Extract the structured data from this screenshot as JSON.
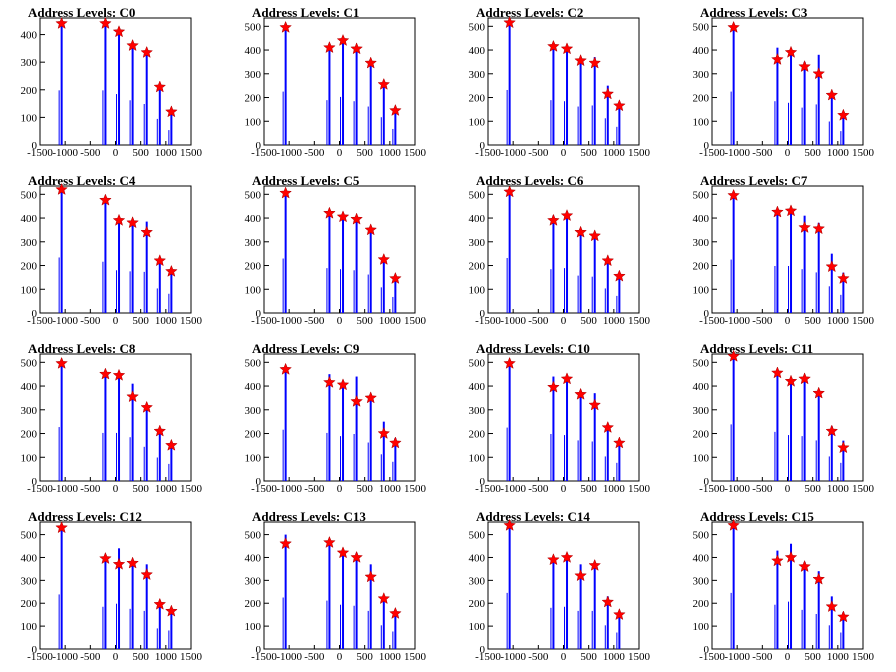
{
  "chart_data": [
    {
      "type": "bar",
      "title": "Address Levels: C0",
      "xlim": [
        -1500,
        1500
      ],
      "ylim": [
        0,
        460
      ],
      "yticks": [
        100,
        200,
        300,
        400
      ],
      "x": [
        -1070,
        -200,
        70,
        340,
        620,
        880,
        1110
      ],
      "values": [
        440,
        440,
        410,
        360,
        330,
        210,
        120
      ],
      "peaks": [
        {
          "x": -1070,
          "y": 440
        },
        {
          "x": -200,
          "y": 440
        },
        {
          "x": 70,
          "y": 410
        },
        {
          "x": 340,
          "y": 360
        },
        {
          "x": 620,
          "y": 335
        },
        {
          "x": 880,
          "y": 210
        },
        {
          "x": 1110,
          "y": 120
        }
      ]
    },
    {
      "type": "bar",
      "title": "Address Levels: C1",
      "xlim": [
        -1500,
        1500
      ],
      "ylim": [
        0,
        535
      ],
      "yticks": [
        100,
        200,
        300,
        400,
        500
      ],
      "x": [
        -1070,
        -200,
        70,
        340,
        620,
        880,
        1110
      ],
      "values": [
        500,
        420,
        450,
        410,
        360,
        260,
        150
      ],
      "peaks": [
        {
          "x": -1070,
          "y": 495
        },
        {
          "x": -200,
          "y": 410
        },
        {
          "x": 70,
          "y": 440
        },
        {
          "x": 340,
          "y": 405
        },
        {
          "x": 620,
          "y": 345
        },
        {
          "x": 880,
          "y": 255
        },
        {
          "x": 1110,
          "y": 145
        }
      ]
    },
    {
      "type": "bar",
      "title": "Address Levels: C2",
      "xlim": [
        -1500,
        1500
      ],
      "ylim": [
        0,
        535
      ],
      "yticks": [
        100,
        200,
        300,
        400,
        500
      ],
      "x": [
        -1070,
        -200,
        70,
        340,
        620,
        880,
        1110
      ],
      "values": [
        515,
        420,
        410,
        360,
        370,
        250,
        170
      ],
      "peaks": [
        {
          "x": -1070,
          "y": 515
        },
        {
          "x": -200,
          "y": 415
        },
        {
          "x": 70,
          "y": 405
        },
        {
          "x": 340,
          "y": 355
        },
        {
          "x": 620,
          "y": 345
        },
        {
          "x": 880,
          "y": 215
        },
        {
          "x": 1110,
          "y": 165
        }
      ]
    },
    {
      "type": "bar",
      "title": "Address Levels: C3",
      "xlim": [
        -1500,
        1500
      ],
      "ylim": [
        0,
        535
      ],
      "yticks": [
        100,
        200,
        300,
        400,
        500
      ],
      "x": [
        -1070,
        -200,
        70,
        340,
        620,
        880,
        1110
      ],
      "values": [
        500,
        410,
        395,
        350,
        380,
        220,
        130
      ],
      "peaks": [
        {
          "x": -1070,
          "y": 495
        },
        {
          "x": -200,
          "y": 360
        },
        {
          "x": 70,
          "y": 390
        },
        {
          "x": 340,
          "y": 330
        },
        {
          "x": 620,
          "y": 300
        },
        {
          "x": 880,
          "y": 210
        },
        {
          "x": 1110,
          "y": 125
        }
      ]
    },
    {
      "type": "bar",
      "title": "Address Levels: C4",
      "xlim": [
        -1500,
        1500
      ],
      "ylim": [
        0,
        535
      ],
      "yticks": [
        100,
        200,
        300,
        400,
        500
      ],
      "x": [
        -1070,
        -200,
        70,
        340,
        620,
        880,
        1110
      ],
      "values": [
        520,
        480,
        400,
        390,
        385,
        230,
        180
      ],
      "peaks": [
        {
          "x": -1070,
          "y": 520
        },
        {
          "x": -200,
          "y": 475
        },
        {
          "x": 70,
          "y": 390
        },
        {
          "x": 340,
          "y": 380
        },
        {
          "x": 620,
          "y": 340
        },
        {
          "x": 880,
          "y": 220
        },
        {
          "x": 1110,
          "y": 175
        }
      ]
    },
    {
      "type": "bar",
      "title": "Address Levels: C5",
      "xlim": [
        -1500,
        1500
      ],
      "ylim": [
        0,
        535
      ],
      "yticks": [
        100,
        200,
        300,
        400,
        500
      ],
      "x": [
        -1070,
        -200,
        70,
        340,
        620,
        880,
        1110
      ],
      "values": [
        510,
        420,
        410,
        400,
        360,
        240,
        150
      ],
      "peaks": [
        {
          "x": -1070,
          "y": 505
        },
        {
          "x": -200,
          "y": 420
        },
        {
          "x": 70,
          "y": 405
        },
        {
          "x": 340,
          "y": 395
        },
        {
          "x": 620,
          "y": 350
        },
        {
          "x": 880,
          "y": 225
        },
        {
          "x": 1110,
          "y": 145
        }
      ]
    },
    {
      "type": "bar",
      "title": "Address Levels: C6",
      "xlim": [
        -1500,
        1500
      ],
      "ylim": [
        0,
        535
      ],
      "yticks": [
        100,
        200,
        300,
        400,
        500
      ],
      "x": [
        -1070,
        -200,
        70,
        340,
        620,
        880,
        1110
      ],
      "values": [
        515,
        410,
        420,
        350,
        340,
        230,
        160
      ],
      "peaks": [
        {
          "x": -1070,
          "y": 510
        },
        {
          "x": -200,
          "y": 390
        },
        {
          "x": 70,
          "y": 410
        },
        {
          "x": 340,
          "y": 340
        },
        {
          "x": 620,
          "y": 325
        },
        {
          "x": 880,
          "y": 220
        },
        {
          "x": 1110,
          "y": 155
        }
      ]
    },
    {
      "type": "bar",
      "title": "Address Levels: C7",
      "xlim": [
        -1500,
        1500
      ],
      "ylim": [
        0,
        535
      ],
      "yticks": [
        100,
        200,
        300,
        400,
        500
      ],
      "x": [
        -1070,
        -200,
        70,
        340,
        620,
        880,
        1110
      ],
      "values": [
        500,
        440,
        440,
        410,
        380,
        250,
        170
      ],
      "peaks": [
        {
          "x": -1070,
          "y": 495
        },
        {
          "x": -200,
          "y": 425
        },
        {
          "x": 70,
          "y": 430
        },
        {
          "x": 340,
          "y": 360
        },
        {
          "x": 620,
          "y": 355
        },
        {
          "x": 880,
          "y": 195
        },
        {
          "x": 1110,
          "y": 145
        }
      ]
    },
    {
      "type": "bar",
      "title": "Address Levels: C8",
      "xlim": [
        -1500,
        1500
      ],
      "ylim": [
        0,
        535
      ],
      "yticks": [
        100,
        200,
        300,
        400,
        500
      ],
      "x": [
        -1070,
        -200,
        70,
        340,
        620,
        880,
        1110
      ],
      "values": [
        505,
        450,
        450,
        410,
        320,
        220,
        160
      ],
      "peaks": [
        {
          "x": -1070,
          "y": 495
        },
        {
          "x": -200,
          "y": 450
        },
        {
          "x": 70,
          "y": 445
        },
        {
          "x": 340,
          "y": 355
        },
        {
          "x": 620,
          "y": 310
        },
        {
          "x": 880,
          "y": 210
        },
        {
          "x": 1110,
          "y": 150
        }
      ]
    },
    {
      "type": "bar",
      "title": "Address Levels: C9",
      "xlim": [
        -1500,
        1500
      ],
      "ylim": [
        0,
        535
      ],
      "yticks": [
        100,
        200,
        300,
        400,
        500
      ],
      "x": [
        -1070,
        -200,
        70,
        340,
        620,
        880,
        1110
      ],
      "values": [
        480,
        450,
        420,
        440,
        360,
        250,
        180
      ],
      "peaks": [
        {
          "x": -1070,
          "y": 470
        },
        {
          "x": -200,
          "y": 415
        },
        {
          "x": 70,
          "y": 405
        },
        {
          "x": 340,
          "y": 335
        },
        {
          "x": 620,
          "y": 350
        },
        {
          "x": 880,
          "y": 200
        },
        {
          "x": 1110,
          "y": 160
        }
      ]
    },
    {
      "type": "bar",
      "title": "Address Levels: C10",
      "xlim": [
        -1500,
        1500
      ],
      "ylim": [
        0,
        535
      ],
      "yticks": [
        100,
        200,
        300,
        400,
        500
      ],
      "x": [
        -1070,
        -200,
        70,
        340,
        620,
        880,
        1110
      ],
      "values": [
        500,
        440,
        430,
        380,
        370,
        230,
        170
      ],
      "peaks": [
        {
          "x": -1070,
          "y": 495
        },
        {
          "x": -200,
          "y": 395
        },
        {
          "x": 70,
          "y": 430
        },
        {
          "x": 340,
          "y": 365
        },
        {
          "x": 620,
          "y": 320
        },
        {
          "x": 880,
          "y": 225
        },
        {
          "x": 1110,
          "y": 160
        }
      ]
    },
    {
      "type": "bar",
      "title": "Address Levels: C11",
      "xlim": [
        -1500,
        1500
      ],
      "ylim": [
        0,
        535
      ],
      "yticks": [
        100,
        200,
        300,
        400,
        500
      ],
      "x": [
        -1070,
        -200,
        70,
        340,
        620,
        880,
        1110
      ],
      "values": [
        530,
        460,
        430,
        420,
        380,
        230,
        170
      ],
      "peaks": [
        {
          "x": -1070,
          "y": 525
        },
        {
          "x": -200,
          "y": 455
        },
        {
          "x": 70,
          "y": 420
        },
        {
          "x": 340,
          "y": 430
        },
        {
          "x": 620,
          "y": 370
        },
        {
          "x": 880,
          "y": 210
        },
        {
          "x": 1110,
          "y": 140
        }
      ]
    },
    {
      "type": "bar",
      "title": "Address Levels: C12",
      "xlim": [
        -1500,
        1500
      ],
      "ylim": [
        0,
        555
      ],
      "yticks": [
        100,
        200,
        300,
        400,
        500
      ],
      "x": [
        -1070,
        -200,
        70,
        340,
        620,
        880,
        1110
      ],
      "values": [
        530,
        410,
        440,
        390,
        370,
        200,
        180
      ],
      "peaks": [
        {
          "x": -1070,
          "y": 530
        },
        {
          "x": -200,
          "y": 395
        },
        {
          "x": 70,
          "y": 370
        },
        {
          "x": 340,
          "y": 375
        },
        {
          "x": 620,
          "y": 325
        },
        {
          "x": 880,
          "y": 195
        },
        {
          "x": 1110,
          "y": 165
        }
      ]
    },
    {
      "type": "bar",
      "title": "Address Levels: C13",
      "xlim": [
        -1500,
        1500
      ],
      "ylim": [
        0,
        555
      ],
      "yticks": [
        100,
        200,
        300,
        400,
        500
      ],
      "x": [
        -1070,
        -200,
        70,
        340,
        620,
        880,
        1110
      ],
      "values": [
        500,
        470,
        430,
        420,
        370,
        230,
        170
      ],
      "peaks": [
        {
          "x": -1070,
          "y": 460
        },
        {
          "x": -200,
          "y": 465
        },
        {
          "x": 70,
          "y": 420
        },
        {
          "x": 340,
          "y": 400
        },
        {
          "x": 620,
          "y": 315
        },
        {
          "x": 880,
          "y": 220
        },
        {
          "x": 1110,
          "y": 155
        }
      ]
    },
    {
      "type": "bar",
      "title": "Address Levels: C14",
      "xlim": [
        -1500,
        1500
      ],
      "ylim": [
        0,
        555
      ],
      "yticks": [
        100,
        200,
        300,
        400,
        500
      ],
      "x": [
        -1070,
        -200,
        70,
        340,
        620,
        880,
        1110
      ],
      "values": [
        545,
        400,
        410,
        370,
        370,
        230,
        160
      ],
      "peaks": [
        {
          "x": -1070,
          "y": 540
        },
        {
          "x": -200,
          "y": 390
        },
        {
          "x": 70,
          "y": 400
        },
        {
          "x": 340,
          "y": 320
        },
        {
          "x": 620,
          "y": 365
        },
        {
          "x": 880,
          "y": 205
        },
        {
          "x": 1110,
          "y": 150
        }
      ]
    },
    {
      "type": "bar",
      "title": "Address Levels: C15",
      "xlim": [
        -1500,
        1500
      ],
      "ylim": [
        0,
        555
      ],
      "yticks": [
        100,
        200,
        300,
        400,
        500
      ],
      "x": [
        -1070,
        -200,
        70,
        340,
        620,
        880,
        1110
      ],
      "values": [
        545,
        430,
        460,
        380,
        340,
        230,
        160
      ],
      "peaks": [
        {
          "x": -1070,
          "y": 540
        },
        {
          "x": -200,
          "y": 385
        },
        {
          "x": 70,
          "y": 400
        },
        {
          "x": 340,
          "y": 360
        },
        {
          "x": 620,
          "y": 305
        },
        {
          "x": 880,
          "y": 185
        },
        {
          "x": 1110,
          "y": 140
        }
      ]
    }
  ],
  "x_tick_labels": [
    "-1500",
    "-1000",
    "-500",
    "0",
    "500",
    "1000",
    "1500"
  ],
  "x_tick_values": [
    -1500,
    -1000,
    -500,
    0,
    500,
    1000,
    1500
  ],
  "colors": {
    "bars": "#0000ff",
    "markers": "#ff0000",
    "axis": "#000000",
    "background": "#ffffff"
  },
  "marker_shape": "star"
}
